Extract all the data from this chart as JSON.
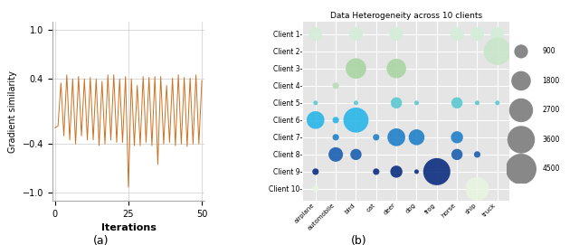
{
  "line_color": "#cd7020",
  "line_xlabel": "Iterations",
  "line_ylabel": "Gradient similarity",
  "line_ylim": [
    -1.1,
    1.1
  ],
  "line_xlim": [
    -1,
    51
  ],
  "line_xticks": [
    0,
    25,
    50
  ],
  "line_yticks": [
    -1.0,
    -0.4,
    0.4,
    1.0
  ],
  "label_a": "(a)",
  "label_b": "(b)",
  "bubble_title": "Data Heterogeneity across 10 clients",
  "classes": [
    "airplane",
    "automobile",
    "bird",
    "cat",
    "deer",
    "dog",
    "frog",
    "horse",
    "ship",
    "truck"
  ],
  "clients": [
    "Client 1-",
    "Client 2-",
    "Client 3-",
    "Client 4-",
    "Client 5-",
    "Client 6-",
    "Client 7-",
    "Client 8-",
    "Client 9-",
    "Client 10-"
  ],
  "bubble_data": [
    [
      900,
      50,
      900,
      50,
      900,
      50,
      50,
      900,
      900,
      900
    ],
    [
      50,
      50,
      50,
      50,
      50,
      50,
      50,
      50,
      50,
      3600
    ],
    [
      50,
      50,
      2000,
      50,
      1800,
      50,
      50,
      50,
      50,
      50
    ],
    [
      50,
      200,
      50,
      50,
      50,
      50,
      50,
      50,
      50,
      50
    ],
    [
      100,
      50,
      100,
      50,
      600,
      100,
      50,
      600,
      100,
      100
    ],
    [
      1500,
      200,
      3000,
      50,
      50,
      50,
      50,
      50,
      50,
      50
    ],
    [
      50,
      200,
      50,
      200,
      1500,
      1200,
      50,
      700,
      50,
      50
    ],
    [
      50,
      1000,
      600,
      50,
      50,
      50,
      50,
      600,
      200,
      50
    ],
    [
      200,
      50,
      50,
      200,
      700,
      100,
      3500,
      50,
      50,
      50
    ],
    [
      200,
      50,
      50,
      50,
      50,
      50,
      50,
      50,
      2700,
      50
    ]
  ],
  "client_colors": [
    "#d4edda",
    "#c8e6c9",
    "#a8d5a2",
    "#b8ddb8",
    "#5bc8d0",
    "#29b6e8",
    "#2080c8",
    "#1a60b0",
    "#0d2d80",
    "#e8f5e0"
  ],
  "legend_sizes": [
    900,
    1800,
    2700,
    3600,
    4500
  ],
  "legend_color": "#888888",
  "bg_color": "#e5e5e5",
  "line_data_y": [
    -0.2,
    -0.18,
    0.35,
    -0.3,
    0.45,
    -0.35,
    0.4,
    -0.4,
    0.43,
    -0.3,
    0.4,
    -0.35,
    0.42,
    -0.35,
    0.4,
    -0.42,
    0.37,
    -0.4,
    0.45,
    -0.35,
    0.45,
    -0.38,
    0.4,
    -0.38,
    0.43,
    -0.93,
    0.4,
    -0.42,
    0.32,
    -0.42,
    0.43,
    -0.38,
    0.42,
    -0.42,
    0.43,
    -0.65,
    0.43,
    -0.4,
    0.32,
    -0.38,
    0.41,
    -0.42,
    0.45,
    -0.4,
    0.42,
    -0.43,
    0.41,
    -0.4,
    0.45,
    -0.4,
    0.38
  ]
}
